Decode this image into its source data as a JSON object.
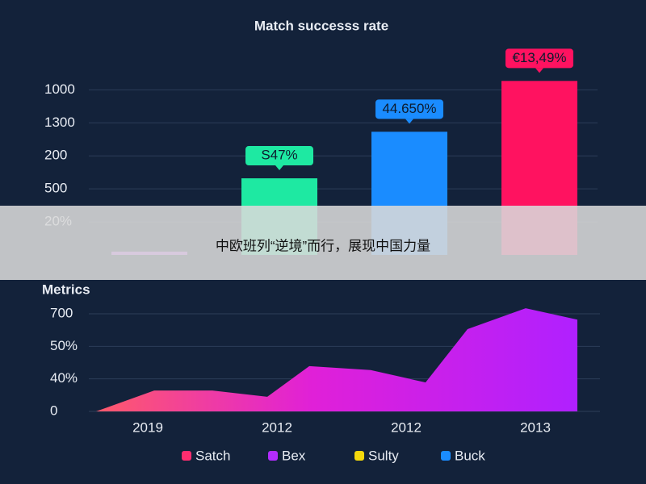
{
  "chart_data": [
    {
      "type": "bar",
      "title": "Match successs rate",
      "categories": [
        null,
        null,
        null,
        null
      ],
      "values": [
        0.1,
        2.32,
        3.73,
        5.27
      ],
      "colors": [
        "#c85cff",
        "#1ee9a2",
        "#1a8cff",
        "#ff1260"
      ],
      "annotations": [
        "S47%",
        "44.650%",
        "€13,49%"
      ],
      "ylim": [
        0,
        5.4
      ],
      "yticks": [
        {
          "value": 1,
          "label": "20%"
        },
        {
          "value": 2,
          "label": "500"
        },
        {
          "value": 3,
          "label": "200"
        },
        {
          "value": 4,
          "label": "1300"
        },
        {
          "value": 5,
          "label": "1000"
        }
      ],
      "grid": true
    },
    {
      "type": "area",
      "title": "Metrics",
      "x": [
        0.2,
        1.1,
        2.0,
        2.85,
        3.5,
        4.45,
        5.3,
        5.95,
        6.85,
        7.65
      ],
      "values": [
        0,
        0.64,
        0.64,
        0.45,
        1.39,
        1.27,
        0.89,
        2.53,
        3.17,
        2.82
      ],
      "colors": [
        "#ff5a6a",
        "#e020d8",
        "#b020ff"
      ],
      "xlim": [
        0,
        8
      ],
      "xticks": [
        {
          "value": 1,
          "label": "2019"
        },
        {
          "value": 3,
          "label": "2012"
        },
        {
          "value": 5,
          "label": "2012"
        },
        {
          "value": 7,
          "label": "2013"
        }
      ],
      "ylim": [
        0,
        3
      ],
      "yticks": [
        0,
        {
          "value": 1,
          "label": "40%"
        },
        {
          "value": 2,
          "label": "50%"
        },
        {
          "value": 3,
          "label": "700"
        }
      ],
      "grid": true,
      "legend": [
        {
          "name": "Satch",
          "color": "#ff2d6f"
        },
        {
          "name": "Bex",
          "color": "#b22cff"
        },
        {
          "name": "Sulty",
          "color": "#f4d80c"
        },
        {
          "name": "Buck",
          "color": "#1a8cff"
        }
      ]
    }
  ],
  "banner": {
    "text": "中欧班列“逆境”而行，展现中国力量"
  }
}
